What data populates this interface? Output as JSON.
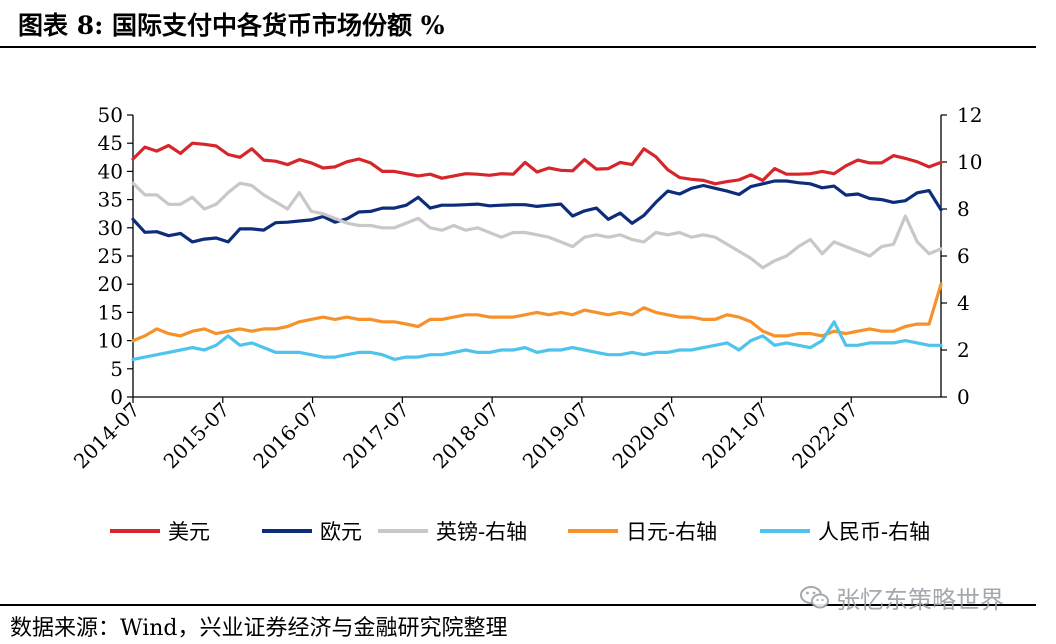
{
  "header": {
    "title": "图表 8:  国际支付中各货币市场份额 %"
  },
  "footer": {
    "source": "数据来源：Wind，兴业证券经济与金融研究院整理"
  },
  "watermark": {
    "text": "张忆东策略世界",
    "icon": "wechat-logo-icon"
  },
  "chart_data": {
    "type": "line",
    "x_ticks": [
      "2014-07",
      "2015-07",
      "2016-07",
      "2017-07",
      "2018-07",
      "2019-07",
      "2020-07",
      "2021-07",
      "2022-07"
    ],
    "x_range": [
      "2014-07",
      "2023-07"
    ],
    "y_left": {
      "range": [
        0,
        50
      ],
      "ticks": [
        0,
        5,
        10,
        15,
        20,
        25,
        30,
        35,
        40,
        45,
        50
      ]
    },
    "y_right": {
      "range": [
        0,
        12
      ],
      "ticks": [
        0,
        2,
        4,
        6,
        8,
        10,
        12
      ]
    },
    "grid": false,
    "legend_position": "bottom",
    "series": [
      {
        "name": "美元",
        "axis": "left",
        "color": "#d7262b",
        "values": [
          42.2,
          44.3,
          43.6,
          44.6,
          43.2,
          45.0,
          44.8,
          44.5,
          43.0,
          42.5,
          44.0,
          42.0,
          41.8,
          41.2,
          42.1,
          41.5,
          40.6,
          40.8,
          41.7,
          42.2,
          41.5,
          40.0,
          40.0,
          39.6,
          39.2,
          39.5,
          38.8,
          39.2,
          39.6,
          39.5,
          39.3,
          39.6,
          39.5,
          41.6,
          39.9,
          40.6,
          40.2,
          40.1,
          42.1,
          40.4,
          40.5,
          41.6,
          41.2,
          44.0,
          42.6,
          40.3,
          38.9,
          38.6,
          38.4,
          37.8,
          38.2,
          38.5,
          39.4,
          38.4,
          40.5,
          39.5,
          39.5,
          39.6,
          40.0,
          39.6,
          41.0,
          42.0,
          41.5,
          41.5,
          42.8,
          42.3,
          41.7,
          40.8,
          41.6
        ]
      },
      {
        "name": "欧元",
        "axis": "left",
        "color": "#0d2c7a",
        "values": [
          31.5,
          29.2,
          29.3,
          28.6,
          29.0,
          27.5,
          28.0,
          28.2,
          27.5,
          29.8,
          29.8,
          29.6,
          30.9,
          31.0,
          31.2,
          31.4,
          32.0,
          31.0,
          31.6,
          32.8,
          32.9,
          33.5,
          33.5,
          34.0,
          35.4,
          33.5,
          34.0,
          34.0,
          34.1,
          34.2,
          33.9,
          34.0,
          34.1,
          34.1,
          33.8,
          34.0,
          34.2,
          32.1,
          33.0,
          33.5,
          31.5,
          32.6,
          30.8,
          32.2,
          34.5,
          36.5,
          36.0,
          37.0,
          37.5,
          37.0,
          36.5,
          35.9,
          37.3,
          37.8,
          38.3,
          38.3,
          38.0,
          37.8,
          37.1,
          37.4,
          35.8,
          36.0,
          35.2,
          35.0,
          34.5,
          34.8,
          36.2,
          36.6,
          33.2
        ]
      },
      {
        "name": "英镑-右轴",
        "axis": "right",
        "color": "#c8c8c8",
        "values": [
          9.1,
          8.6,
          8.6,
          8.2,
          8.2,
          8.5,
          8.0,
          8.2,
          8.7,
          9.1,
          9.0,
          8.6,
          8.3,
          8.0,
          8.7,
          7.9,
          7.8,
          7.6,
          7.4,
          7.3,
          7.3,
          7.2,
          7.2,
          7.4,
          7.6,
          7.2,
          7.1,
          7.3,
          7.1,
          7.2,
          7.0,
          6.8,
          7.0,
          7.0,
          6.9,
          6.8,
          6.6,
          6.4,
          6.8,
          6.9,
          6.8,
          6.9,
          6.7,
          6.6,
          7.0,
          6.9,
          7.0,
          6.8,
          6.9,
          6.8,
          6.5,
          6.2,
          5.9,
          5.5,
          5.8,
          6.0,
          6.4,
          6.7,
          6.1,
          6.6,
          6.4,
          6.2,
          6.0,
          6.4,
          6.5,
          7.7,
          6.6,
          6.1,
          6.3
        ]
      },
      {
        "name": "日元-右轴",
        "axis": "right",
        "color": "#f5922b",
        "values": [
          2.4,
          2.6,
          2.9,
          2.7,
          2.6,
          2.8,
          2.9,
          2.7,
          2.8,
          2.9,
          2.8,
          2.9,
          2.9,
          3.0,
          3.2,
          3.3,
          3.4,
          3.3,
          3.4,
          3.3,
          3.3,
          3.2,
          3.2,
          3.1,
          3.0,
          3.3,
          3.3,
          3.4,
          3.5,
          3.5,
          3.4,
          3.4,
          3.4,
          3.5,
          3.6,
          3.5,
          3.6,
          3.5,
          3.7,
          3.6,
          3.5,
          3.6,
          3.5,
          3.8,
          3.6,
          3.5,
          3.4,
          3.4,
          3.3,
          3.3,
          3.5,
          3.4,
          3.2,
          2.8,
          2.6,
          2.6,
          2.7,
          2.7,
          2.6,
          2.8,
          2.7,
          2.8,
          2.9,
          2.8,
          2.8,
          3.0,
          3.1,
          3.1,
          4.8
        ]
      },
      {
        "name": "人民币-右轴",
        "axis": "right",
        "color": "#4dc3ee",
        "values": [
          1.6,
          1.7,
          1.8,
          1.9,
          2.0,
          2.1,
          2.0,
          2.2,
          2.6,
          2.2,
          2.3,
          2.1,
          1.9,
          1.9,
          1.9,
          1.8,
          1.7,
          1.7,
          1.8,
          1.9,
          1.9,
          1.8,
          1.6,
          1.7,
          1.7,
          1.8,
          1.8,
          1.9,
          2.0,
          1.9,
          1.9,
          2.0,
          2.0,
          2.1,
          1.9,
          2.0,
          2.0,
          2.1,
          2.0,
          1.9,
          1.8,
          1.8,
          1.9,
          1.8,
          1.9,
          1.9,
          2.0,
          2.0,
          2.1,
          2.2,
          2.3,
          2.0,
          2.4,
          2.6,
          2.2,
          2.3,
          2.2,
          2.1,
          2.4,
          3.2,
          2.2,
          2.2,
          2.3,
          2.3,
          2.3,
          2.4,
          2.3,
          2.2,
          2.2
        ]
      }
    ]
  }
}
